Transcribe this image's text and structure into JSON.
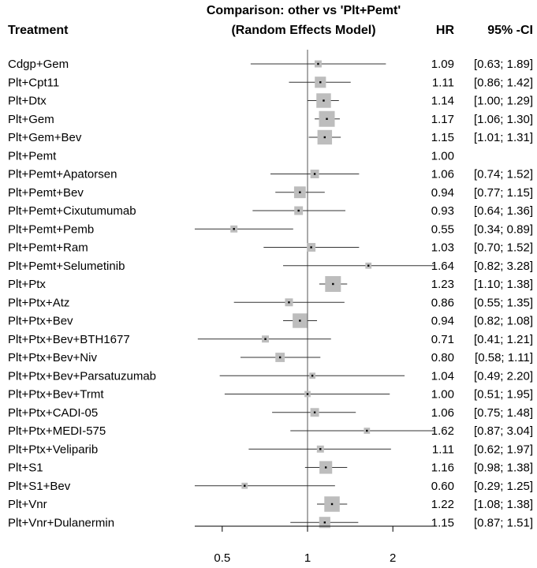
{
  "chart_data": {
    "type": "forest",
    "title_line1": "Comparison: other vs 'Plt+Pemt'",
    "title_line2": "(Random Effects Model)",
    "col_treatment": "Treatment",
    "col_hr": "HR",
    "col_ci": "95% -CI",
    "x_scale": "log",
    "xlim": [
      0.4,
      2.8
    ],
    "ticks": [
      0.5,
      1,
      2
    ],
    "tick_labels": [
      "0.5",
      "1",
      "2"
    ],
    "reference_line": 1,
    "rows": [
      {
        "label": "Cdgp+Gem",
        "hr": 1.09,
        "lo": 0.63,
        "hi": 1.89,
        "hr_text": "1.09",
        "ci_text": "[0.63; 1.89]",
        "weight": 0.2
      },
      {
        "label": "Plt+Cpt11",
        "hr": 1.11,
        "lo": 0.86,
        "hi": 1.42,
        "hr_text": "1.11",
        "ci_text": "[0.86; 1.42]",
        "weight": 0.5
      },
      {
        "label": "Plt+Dtx",
        "hr": 1.14,
        "lo": 1.0,
        "hi": 1.29,
        "hr_text": "1.14",
        "ci_text": "[1.00; 1.29]",
        "weight": 0.85
      },
      {
        "label": "Plt+Gem",
        "hr": 1.17,
        "lo": 1.06,
        "hi": 1.3,
        "hr_text": "1.17",
        "ci_text": "[1.06; 1.30]",
        "weight": 1.0
      },
      {
        "label": "Plt+Gem+Bev",
        "hr": 1.15,
        "lo": 1.01,
        "hi": 1.31,
        "hr_text": "1.15",
        "ci_text": "[1.01; 1.31]",
        "weight": 0.85
      },
      {
        "label": "Plt+Pemt",
        "hr": 1.0,
        "lo": null,
        "hi": null,
        "hr_text": "1.00",
        "ci_text": "",
        "weight": 0
      },
      {
        "label": "Plt+Pemt+Apatorsen",
        "hr": 1.06,
        "lo": 0.74,
        "hi": 1.52,
        "hr_text": "1.06",
        "ci_text": "[0.74; 1.52]",
        "weight": 0.3
      },
      {
        "label": "Plt+Pemt+Bev",
        "hr": 0.94,
        "lo": 0.77,
        "hi": 1.15,
        "hr_text": "0.94",
        "ci_text": "[0.77; 1.15]",
        "weight": 0.55
      },
      {
        "label": "Plt+Pemt+Cixutumumab",
        "hr": 0.93,
        "lo": 0.64,
        "hi": 1.36,
        "hr_text": "0.93",
        "ci_text": "[0.64; 1.36]",
        "weight": 0.3
      },
      {
        "label": "Plt+Pemt+Pemb",
        "hr": 0.55,
        "lo": 0.34,
        "hi": 0.89,
        "hr_text": "0.55",
        "ci_text": "[0.34; 0.89]",
        "weight": 0.2
      },
      {
        "label": "Plt+Pemt+Ram",
        "hr": 1.03,
        "lo": 0.7,
        "hi": 1.52,
        "hr_text": "1.03",
        "ci_text": "[0.70; 1.52]",
        "weight": 0.3
      },
      {
        "label": "Plt+Pemt+Selumetinib",
        "hr": 1.64,
        "lo": 0.82,
        "hi": 3.28,
        "hr_text": "1.64",
        "ci_text": "[0.82; 3.28]",
        "weight": 0.15
      },
      {
        "label": "Plt+Ptx",
        "hr": 1.23,
        "lo": 1.1,
        "hi": 1.38,
        "hr_text": "1.23",
        "ci_text": "[1.10; 1.38]",
        "weight": 1.0
      },
      {
        "label": "Plt+Ptx+Atz",
        "hr": 0.86,
        "lo": 0.55,
        "hi": 1.35,
        "hr_text": "0.86",
        "ci_text": "[0.55; 1.35]",
        "weight": 0.25
      },
      {
        "label": "Plt+Ptx+Bev",
        "hr": 0.94,
        "lo": 0.82,
        "hi": 1.08,
        "hr_text": "0.94",
        "ci_text": "[0.82; 1.08]",
        "weight": 0.85
      },
      {
        "label": "Plt+Ptx+Bev+BTH1677",
        "hr": 0.71,
        "lo": 0.41,
        "hi": 1.21,
        "hr_text": "0.71",
        "ci_text": "[0.41; 1.21]",
        "weight": 0.2
      },
      {
        "label": "Plt+Ptx+Bev+Niv",
        "hr": 0.8,
        "lo": 0.58,
        "hi": 1.11,
        "hr_text": "0.80",
        "ci_text": "[0.58; 1.11]",
        "weight": 0.35
      },
      {
        "label": "Plt+Ptx+Bev+Parsatuzumab",
        "hr": 1.04,
        "lo": 0.49,
        "hi": 2.2,
        "hr_text": "1.04",
        "ci_text": "[0.49; 2.20]",
        "weight": 0.15
      },
      {
        "label": "Plt+Ptx+Bev+Trmt",
        "hr": 1.0,
        "lo": 0.51,
        "hi": 1.95,
        "hr_text": "1.00",
        "ci_text": "[0.51; 1.95]",
        "weight": 0.15
      },
      {
        "label": "Plt+Ptx+CADI-05",
        "hr": 1.06,
        "lo": 0.75,
        "hi": 1.48,
        "hr_text": "1.06",
        "ci_text": "[0.75; 1.48]",
        "weight": 0.3
      },
      {
        "label": "Plt+Ptx+MEDI-575",
        "hr": 1.62,
        "lo": 0.87,
        "hi": 3.04,
        "hr_text": "1.62",
        "ci_text": "[0.87; 3.04]",
        "weight": 0.15
      },
      {
        "label": "Plt+Ptx+Veliparib",
        "hr": 1.11,
        "lo": 0.62,
        "hi": 1.97,
        "hr_text": "1.11",
        "ci_text": "[0.62; 1.97]",
        "weight": 0.2
      },
      {
        "label": "Plt+S1",
        "hr": 1.16,
        "lo": 0.98,
        "hi": 1.38,
        "hr_text": "1.16",
        "ci_text": "[0.98; 1.38]",
        "weight": 0.65
      },
      {
        "label": "Plt+S1+Bev",
        "hr": 0.6,
        "lo": 0.29,
        "hi": 1.25,
        "hr_text": "0.60",
        "ci_text": "[0.29; 1.25]",
        "weight": 0.15
      },
      {
        "label": "Plt+Vnr",
        "hr": 1.22,
        "lo": 1.08,
        "hi": 1.38,
        "hr_text": "1.22",
        "ci_text": "[1.08; 1.38]",
        "weight": 0.95
      },
      {
        "label": "Plt+Vnr+Dulanermin",
        "hr": 1.15,
        "lo": 0.87,
        "hi": 1.51,
        "hr_text": "1.15",
        "ci_text": "[0.87; 1.51]",
        "weight": 0.5
      }
    ]
  }
}
